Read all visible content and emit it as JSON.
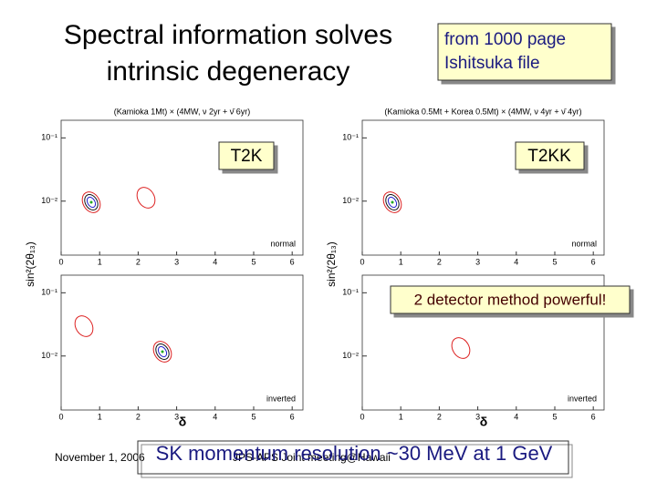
{
  "title": {
    "lines": [
      "Spectral information solves",
      "intrinsic degeneracy"
    ]
  },
  "note": {
    "lines": [
      "from 1000 page",
      "Ishitsuka file"
    ]
  },
  "axes": {
    "ylabel": "sin²(2θ₁₃)",
    "xlabel": "δ",
    "xlim": [
      0,
      6.28
    ],
    "xticks": [
      0,
      1,
      2,
      3,
      4,
      5,
      6
    ],
    "ylim": [
      0.0014,
      0.19
    ],
    "yticks": [
      {
        "value": 0.1,
        "label": "10⁻¹"
      },
      {
        "value": 0.01,
        "label": "10⁻²"
      }
    ]
  },
  "panels": [
    {
      "header": "(Kamioka 1Mt) × (4MW, ν 2yr + ν̄ 6yr)",
      "hierarchy": "normal",
      "callout": "T2K"
    },
    {
      "header": "(Kamioka 0.5Mt + Korea 0.5Mt) × (4MW, ν 4yr + ν̄ 4yr)",
      "hierarchy": "normal",
      "callout": "T2KK"
    },
    {
      "hierarchy": "inverted"
    },
    {
      "hierarchy": "inverted"
    }
  ],
  "callout": "2 detector method powerful!",
  "footer": {
    "date": "November 1, 2006",
    "venue": "JPS-APS Joint meeting@Hawaii",
    "overlay": "SK momentum resolution ~30 MeV at 1 GeV"
  }
}
